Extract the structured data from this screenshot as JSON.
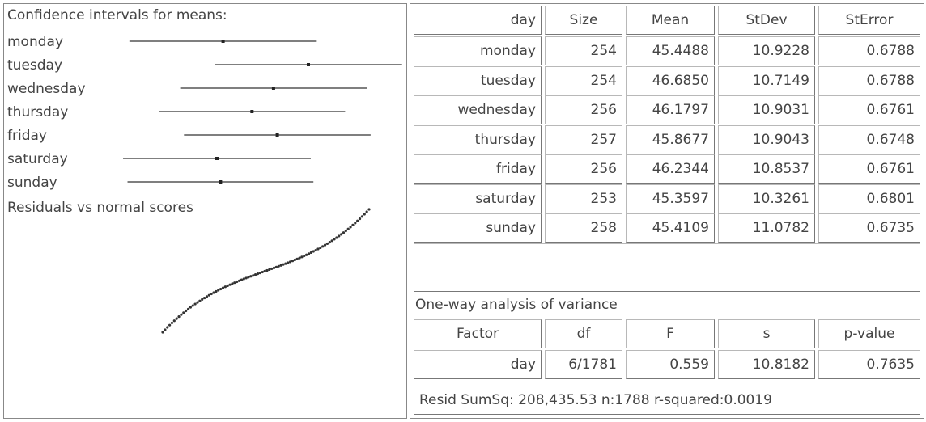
{
  "ci_panel": {
    "title": "Confidence intervals for means:",
    "labels": [
      "monday",
      "tuesday",
      "wednesday",
      "thursday",
      "friday",
      "saturday",
      "sunday"
    ]
  },
  "residual_panel": {
    "title": "Residuals vs normal scores"
  },
  "summary_table": {
    "header": [
      "day",
      "Size",
      "Mean",
      "StDev",
      "StError"
    ],
    "rows": [
      [
        "monday",
        "254",
        "45.4488",
        "10.9228",
        "0.6788"
      ],
      [
        "tuesday",
        "254",
        "46.6850",
        "10.7149",
        "0.6788"
      ],
      [
        "wednesday",
        "256",
        "46.1797",
        "10.9031",
        "0.6761"
      ],
      [
        "thursday",
        "257",
        "45.8677",
        "10.9043",
        "0.6748"
      ],
      [
        "friday",
        "256",
        "46.2344",
        "10.8537",
        "0.6761"
      ],
      [
        "saturday",
        "253",
        "45.3597",
        "10.3261",
        "0.6801"
      ],
      [
        "sunday",
        "258",
        "45.4109",
        "11.0782",
        "0.6735"
      ]
    ]
  },
  "anova": {
    "title": "One-way analysis of variance",
    "header": [
      "Factor",
      "df",
      "F",
      "s",
      "p-value"
    ],
    "rows": [
      [
        "day",
        "6/1781",
        "0.559",
        "10.8182",
        "0.7635"
      ]
    ],
    "footer": "Resid SumSq: 208,435.53 n:1788 r-squared:0.0019"
  }
}
